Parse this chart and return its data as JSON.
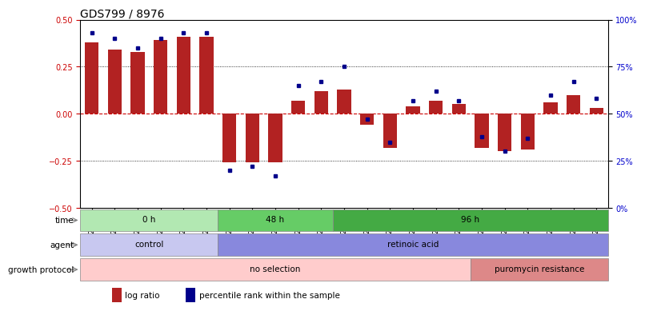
{
  "title": "GDS799 / 8976",
  "samples": [
    "GSM25978",
    "GSM25979",
    "GSM26006",
    "GSM26007",
    "GSM26008",
    "GSM26009",
    "GSM26010",
    "GSM26011",
    "GSM26012",
    "GSM26013",
    "GSM26014",
    "GSM26015",
    "GSM26016",
    "GSM26017",
    "GSM26018",
    "GSM26019",
    "GSM26020",
    "GSM26021",
    "GSM26022",
    "GSM26023",
    "GSM26024",
    "GSM26025",
    "GSM26026"
  ],
  "log_ratio": [
    0.38,
    0.34,
    0.33,
    0.39,
    0.41,
    0.41,
    -0.26,
    -0.26,
    -0.26,
    0.07,
    0.12,
    0.13,
    -0.06,
    -0.18,
    0.04,
    0.07,
    0.05,
    -0.18,
    -0.2,
    -0.19,
    0.06,
    0.1,
    0.03
  ],
  "percentile": [
    93,
    90,
    85,
    90,
    93,
    93,
    20,
    22,
    17,
    65,
    67,
    75,
    47,
    35,
    57,
    62,
    57,
    38,
    30,
    37,
    60,
    67,
    58
  ],
  "bar_color": "#b22222",
  "dot_color": "#00008b",
  "ylim_left": [
    -0.5,
    0.5
  ],
  "ylim_right": [
    0,
    100
  ],
  "yticks_left": [
    -0.5,
    -0.25,
    0,
    0.25,
    0.5
  ],
  "yticks_right": [
    0,
    25,
    50,
    75,
    100
  ],
  "ytick_labels_right": [
    "0%",
    "25%",
    "50%",
    "75%",
    "100%"
  ],
  "hlines": [
    0.25,
    -0.25
  ],
  "time_labels": [
    {
      "label": "0 h",
      "start": 0,
      "end": 6,
      "color": "#b2e8b2",
      "edge": "#888888"
    },
    {
      "label": "48 h",
      "start": 6,
      "end": 11,
      "color": "#66cc66",
      "edge": "#888888"
    },
    {
      "label": "96 h",
      "start": 11,
      "end": 23,
      "color": "#44aa44",
      "edge": "#888888"
    }
  ],
  "agent_labels": [
    {
      "label": "control",
      "start": 0,
      "end": 6,
      "color": "#c8c8f0",
      "edge": "#888888"
    },
    {
      "label": "retinoic acid",
      "start": 6,
      "end": 23,
      "color": "#8888dd",
      "edge": "#888888"
    }
  ],
  "growth_labels": [
    {
      "label": "no selection",
      "start": 0,
      "end": 17,
      "color": "#ffcccc",
      "edge": "#888888"
    },
    {
      "label": "puromycin resistance",
      "start": 17,
      "end": 23,
      "color": "#dd8888",
      "edge": "#888888"
    }
  ],
  "row_labels": [
    "time",
    "agent",
    "growth protocol"
  ],
  "legend_items": [
    {
      "color": "#b22222",
      "label": "log ratio"
    },
    {
      "color": "#00008b",
      "label": "percentile rank within the sample"
    }
  ],
  "bg_color": "#ffffff",
  "tick_label_color_left": "#cc0000",
  "tick_label_color_right": "#0000cc",
  "title_fontsize": 10,
  "tick_fontsize": 7,
  "bar_width": 0.6
}
